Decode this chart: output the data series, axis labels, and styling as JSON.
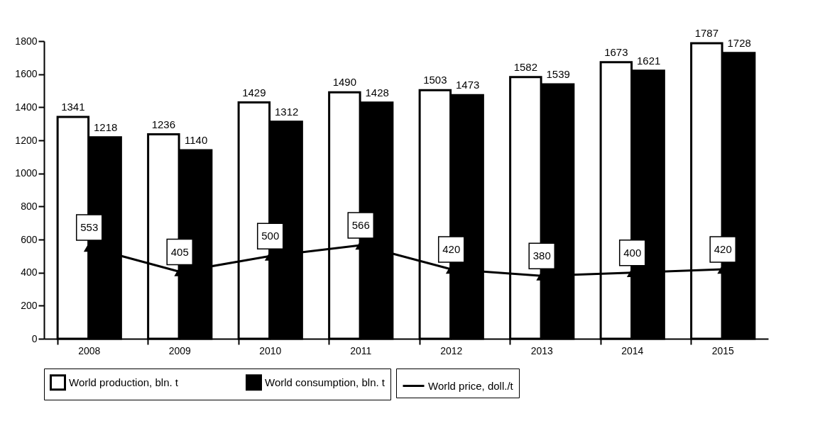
{
  "chart_data": {
    "type": "bar",
    "categories": [
      "2008",
      "2009",
      "2010",
      "2011",
      "2012",
      "2013",
      "2014",
      "2015"
    ],
    "series": [
      {
        "name": "World production, bln. t",
        "color": "#ffffff",
        "values": [
          1341,
          1236,
          1429,
          1490,
          1503,
          1582,
          1673,
          1787
        ]
      },
      {
        "name": "World consumption, bln. t",
        "color": "#000000",
        "values": [
          1218,
          1140,
          1312,
          1428,
          1473,
          1539,
          1621,
          1728
        ]
      },
      {
        "name": "World price, doll./t",
        "type": "line",
        "color": "#000000",
        "marker": "triangle",
        "values": [
          553,
          405,
          500,
          566,
          420,
          380,
          400,
          420
        ]
      }
    ],
    "ylim": [
      0,
      1800
    ],
    "yticks": [
      0,
      200,
      400,
      600,
      800,
      1000,
      1200,
      1400,
      1600,
      1800
    ],
    "grid": false,
    "legend": "bottom",
    "data_labels": true
  }
}
